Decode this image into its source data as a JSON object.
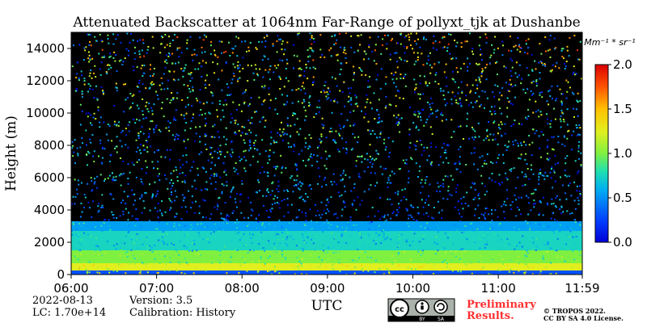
{
  "chart_data": {
    "type": "heatmap",
    "title": "Attenuated Backscatter at 1064nm Far-Range of pollyxt_tjk at Dushanbe",
    "ylabel": "Height (m)",
    "xlabel": "UTC",
    "x_ticks": [
      "06:00",
      "07:00",
      "08:00",
      "09:00",
      "10:00",
      "11:00",
      "11:59"
    ],
    "x_range": [
      "06:00",
      "11:59"
    ],
    "y_ticks": [
      0,
      2000,
      4000,
      6000,
      8000,
      10000,
      12000,
      14000
    ],
    "y_range": [
      0,
      15000
    ],
    "colorbar": {
      "unit_label": "Mm⁻¹ * sr⁻¹",
      "ticks": [
        "0.0",
        "0.5",
        "1.0",
        "1.5",
        "2.0"
      ],
      "range": [
        0,
        2
      ],
      "colormap": "jet"
    },
    "layers": [
      {
        "top_m": 250,
        "value": 0.3
      },
      {
        "top_m": 700,
        "value": 1.25
      },
      {
        "top_m": 1500,
        "value": 1.0
      },
      {
        "top_m": 2700,
        "value": 0.75
      },
      {
        "top_m": 3300,
        "value": 0.55
      }
    ]
  },
  "meta": {
    "date": "2022-08-13",
    "lc": "LC: 1.70e+14",
    "version": "Version: 3.5",
    "calibration": "Calibration: History"
  },
  "license": {
    "preliminary_line1": "Preliminary",
    "preliminary_line2": "Results.",
    "copyright_line1": "© TROPOS 2022.",
    "copyright_line2": "CC BY SA 4.0 License.",
    "badge_by": "BY",
    "badge_sa": "SA"
  }
}
